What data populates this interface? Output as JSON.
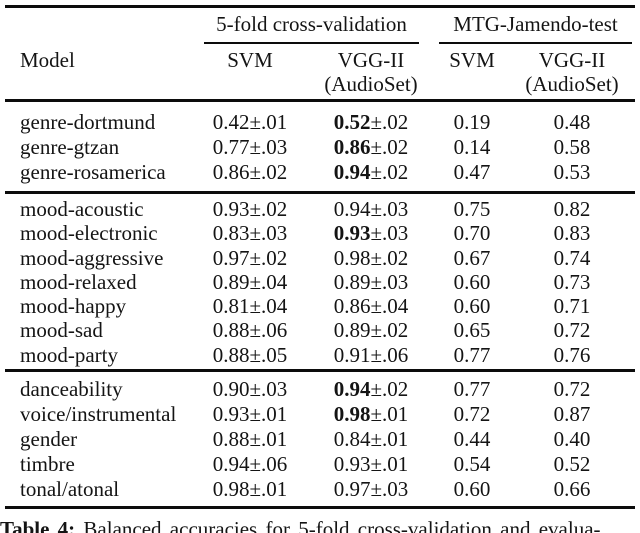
{
  "header": {
    "model_label": "Model",
    "group1": {
      "label": "5-fold cross-validation",
      "svm": "SVM",
      "vgg": "VGG-II",
      "vgg_note": "(AudioSet)"
    },
    "group2": {
      "label": "MTG-Jamendo-test",
      "svm": "SVM",
      "vgg": "VGG-II",
      "vgg_note": "(AudioSet)"
    }
  },
  "table": {
    "sections": [
      {
        "rows": [
          {
            "model": "genre-dortmund",
            "cv_svm": {
              "mean": "0.42",
              "err": "±.01"
            },
            "cv_vgg": {
              "mean": "0.52",
              "err": "±.02",
              "bold": true
            },
            "test_svm": "0.19",
            "test_vgg": "0.48"
          },
          {
            "model": "genre-gtzan",
            "cv_svm": {
              "mean": "0.77",
              "err": "±.03"
            },
            "cv_vgg": {
              "mean": "0.86",
              "err": "±.02",
              "bold": true
            },
            "test_svm": "0.14",
            "test_vgg": "0.58"
          },
          {
            "model": "genre-rosamerica",
            "cv_svm": {
              "mean": "0.86",
              "err": "±.02"
            },
            "cv_vgg": {
              "mean": "0.94",
              "err": "±.02",
              "bold": true
            },
            "test_svm": "0.47",
            "test_vgg": "0.53"
          }
        ]
      },
      {
        "rows": [
          {
            "model": "mood-acoustic",
            "cv_svm": {
              "mean": "0.93",
              "err": "±.02"
            },
            "cv_vgg": {
              "mean": "0.94",
              "err": "±.03",
              "bold": false
            },
            "test_svm": "0.75",
            "test_vgg": "0.82"
          },
          {
            "model": "mood-electronic",
            "cv_svm": {
              "mean": "0.83",
              "err": "±.03"
            },
            "cv_vgg": {
              "mean": "0.93",
              "err": "±.03",
              "bold": true
            },
            "test_svm": "0.70",
            "test_vgg": "0.83"
          },
          {
            "model": "mood-aggressive",
            "cv_svm": {
              "mean": "0.97",
              "err": "±.02"
            },
            "cv_vgg": {
              "mean": "0.98",
              "err": "±.02",
              "bold": false
            },
            "test_svm": "0.67",
            "test_vgg": "0.74"
          },
          {
            "model": "mood-relaxed",
            "cv_svm": {
              "mean": "0.89",
              "err": "±.04"
            },
            "cv_vgg": {
              "mean": "0.89",
              "err": "±.03",
              "bold": false
            },
            "test_svm": "0.60",
            "test_vgg": "0.73"
          },
          {
            "model": "mood-happy",
            "cv_svm": {
              "mean": "0.81",
              "err": "±.04"
            },
            "cv_vgg": {
              "mean": "0.86",
              "err": "±.04",
              "bold": false
            },
            "test_svm": "0.60",
            "test_vgg": "0.71"
          },
          {
            "model": "mood-sad",
            "cv_svm": {
              "mean": "0.88",
              "err": "±.06"
            },
            "cv_vgg": {
              "mean": "0.89",
              "err": "±.02",
              "bold": false
            },
            "test_svm": "0.65",
            "test_vgg": "0.72"
          },
          {
            "model": "mood-party",
            "cv_svm": {
              "mean": "0.88",
              "err": "±.05"
            },
            "cv_vgg": {
              "mean": "0.91",
              "err": "±.06",
              "bold": false
            },
            "test_svm": "0.77",
            "test_vgg": "0.76"
          }
        ]
      },
      {
        "rows": [
          {
            "model": "danceability",
            "cv_svm": {
              "mean": "0.90",
              "err": "±.03"
            },
            "cv_vgg": {
              "mean": "0.94",
              "err": "±.02",
              "bold": true
            },
            "test_svm": "0.77",
            "test_vgg": "0.72"
          },
          {
            "model": "voice/instrumental",
            "cv_svm": {
              "mean": "0.93",
              "err": "±.01"
            },
            "cv_vgg": {
              "mean": "0.98",
              "err": "±.01",
              "bold": true
            },
            "test_svm": "0.72",
            "test_vgg": "0.87"
          },
          {
            "model": "gender",
            "cv_svm": {
              "mean": "0.88",
              "err": "±.01"
            },
            "cv_vgg": {
              "mean": "0.84",
              "err": "±.01",
              "bold": false
            },
            "test_svm": "0.44",
            "test_vgg": "0.40"
          },
          {
            "model": "timbre",
            "cv_svm": {
              "mean": "0.94",
              "err": "±.06"
            },
            "cv_vgg": {
              "mean": "0.93",
              "err": "±.01",
              "bold": false
            },
            "test_svm": "0.54",
            "test_vgg": "0.52"
          },
          {
            "model": "tonal/atonal",
            "cv_svm": {
              "mean": "0.98",
              "err": "±.01"
            },
            "cv_vgg": {
              "mean": "0.97",
              "err": "±.03",
              "bold": false
            },
            "test_svm": "0.60",
            "test_vgg": "0.66"
          }
        ]
      }
    ]
  },
  "caption": {
    "label": "Table 4:",
    "text": "Balanced accuracies for 5-fold cross-validation and evalua-"
  }
}
